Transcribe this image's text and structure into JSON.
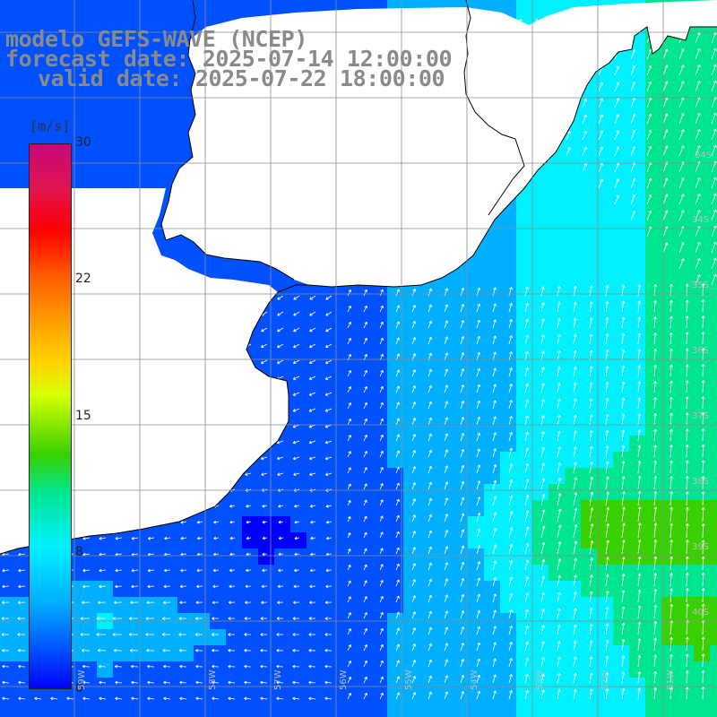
{
  "title": {
    "line1": "modelo GEFS-WAVE (NCEP)",
    "line2": "forecast date: 2025-07-14 12:00:00",
    "line3": "valid date: 2025-07-22 18:00:00"
  },
  "colorbar": {
    "unit": "[m/s]",
    "ticks": [
      "30",
      "22",
      "15",
      "8",
      "0"
    ],
    "tick_values": [
      30,
      22,
      15,
      8,
      0
    ],
    "range": [
      0,
      30
    ],
    "colors": [
      "#0000ff",
      "#0050ff",
      "#00b0ff",
      "#00f0ff",
      "#00e690",
      "#38d000",
      "#d8ff00",
      "#ffd200",
      "#ff9a00",
      "#ff5a00",
      "#ff0000",
      "#e01450",
      "#c8087a"
    ]
  },
  "lat_labels": [
    "34S",
    "35S",
    "36S",
    "37S",
    "38S",
    "39S",
    "40S"
  ],
  "lon_labels": [
    "59W",
    "58W",
    "57W",
    "56W",
    "55W",
    "54W",
    "53W",
    "52W",
    "51W"
  ],
  "map": {
    "land_color": "#ffffff",
    "coastline_color": "#000000",
    "grid_color": "#8c8c8c",
    "arrow_color": "#ffffff"
  }
}
